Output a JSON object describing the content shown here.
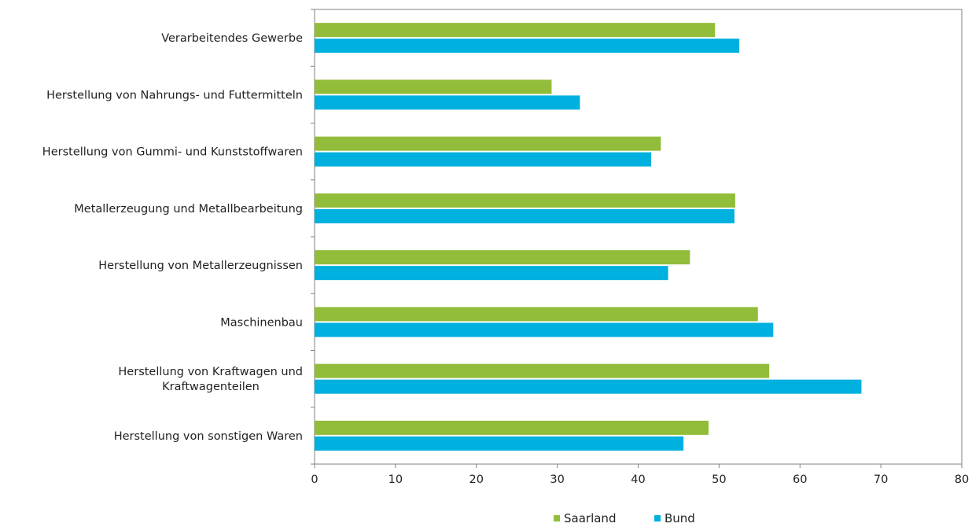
{
  "chart_data": {
    "type": "bar",
    "orientation": "horizontal",
    "title": "",
    "xlabel": "",
    "ylabel": "",
    "xlim": [
      0,
      80
    ],
    "xticks": [
      0,
      10,
      20,
      30,
      40,
      50,
      60,
      70,
      80
    ],
    "grid": false,
    "legend_position": "bottom",
    "categories": [
      [
        "Verarbeitendes Gewerbe"
      ],
      [
        "Herstellung von Nahrungs- und Futtermitteln"
      ],
      [
        "Herstellung von Gummi- und Kunststoffwaren"
      ],
      [
        "Metallerzeugung und Metallbearbeitung"
      ],
      [
        "Herstellung von Metallerzeugnissen"
      ],
      [
        "Maschinenbau"
      ],
      [
        "Herstellung von Kraftwagen und",
        "Kraftwagenteilen"
      ],
      [
        "Herstellung von sonstigen Waren"
      ]
    ],
    "series": [
      {
        "name": "Saarland",
        "color": "#92BD3A",
        "values": [
          49.5,
          29.3,
          42.8,
          52.0,
          46.4,
          54.8,
          56.2,
          48.7
        ]
      },
      {
        "name": "Bund",
        "color": "#00B0DF",
        "values": [
          52.5,
          32.8,
          41.6,
          51.9,
          43.7,
          56.7,
          67.6,
          45.6
        ]
      }
    ]
  }
}
